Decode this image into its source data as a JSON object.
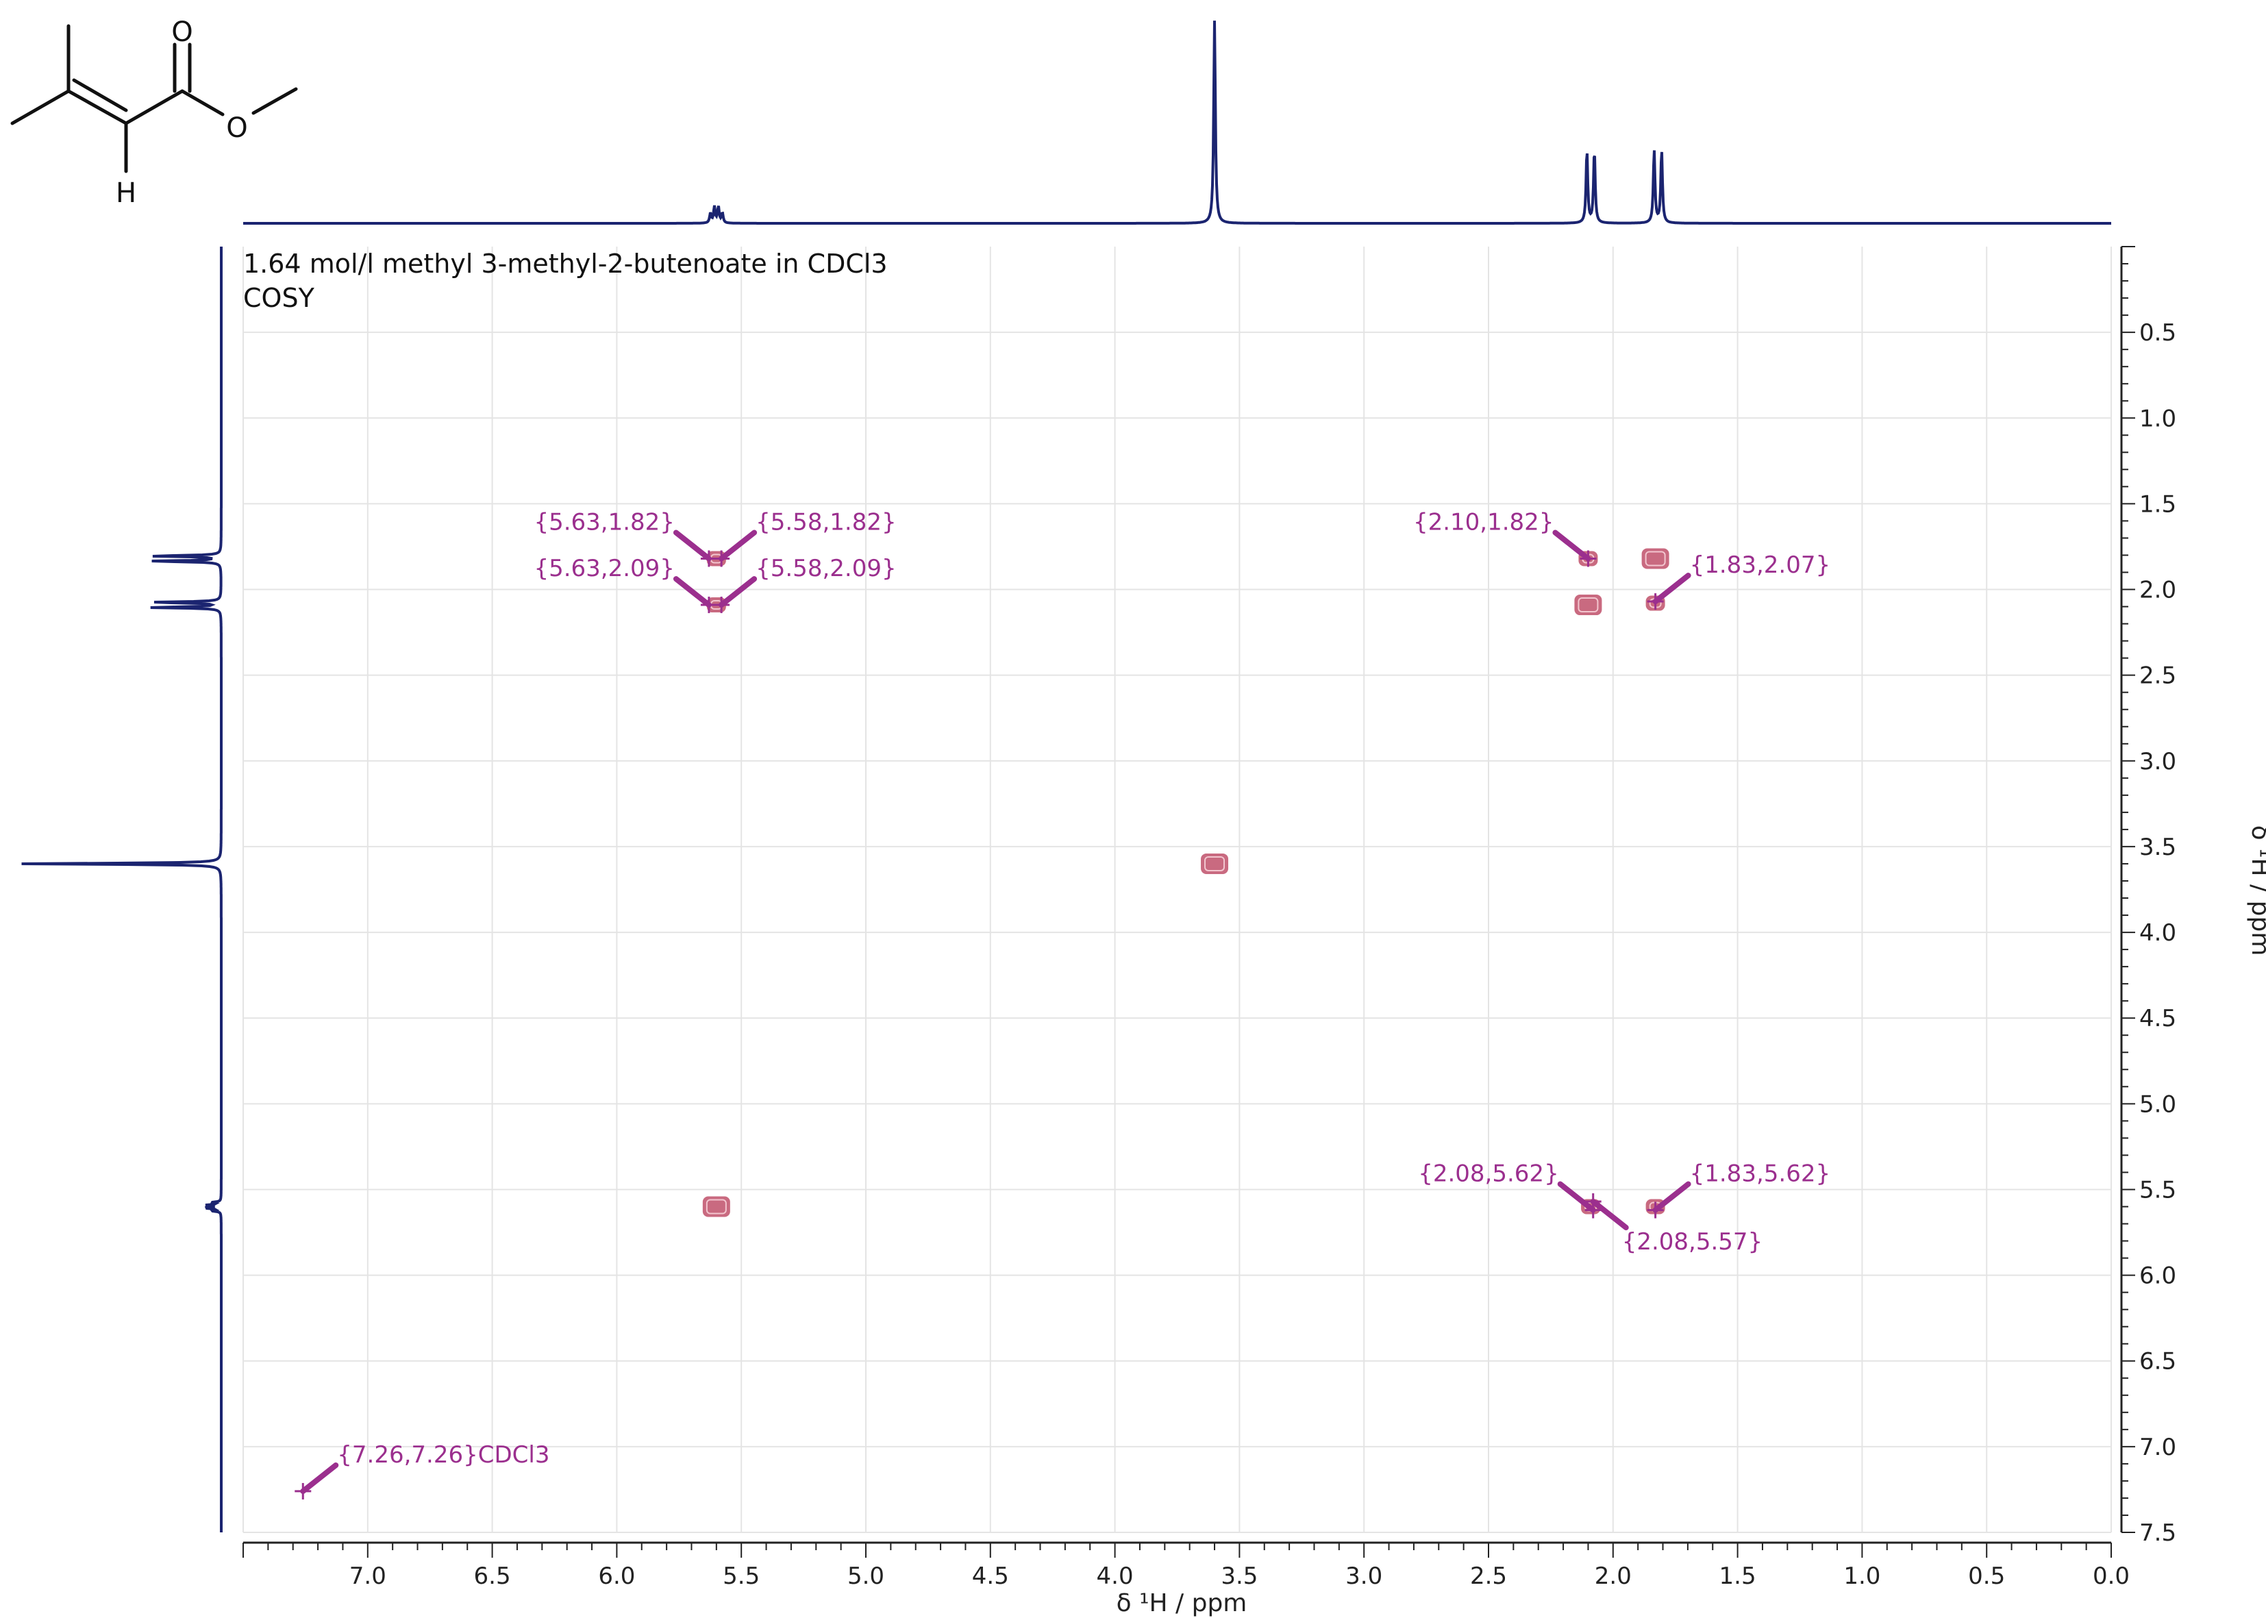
{
  "chart_data": {
    "type": "scatter",
    "title": "1.64 mol/l methyl 3-methyl-2-butenoate in CDCl3",
    "subtitle": "COSY",
    "xlabel": "δ ¹H / ppm",
    "ylabel": "δ ¹H / ppm",
    "xlim": [
      7.5,
      0.0
    ],
    "ylim": [
      0.0,
      7.5
    ],
    "x_ticks": [
      "7.0",
      "6.5",
      "6.0",
      "5.5",
      "5.0",
      "4.5",
      "4.0",
      "3.5",
      "3.0",
      "2.5",
      "2.0",
      "1.5",
      "1.0",
      "0.5",
      "0.0"
    ],
    "y_ticks": [
      "0.5",
      "1.0",
      "1.5",
      "2.0",
      "2.5",
      "3.0",
      "3.5",
      "4.0",
      "4.5",
      "5.0",
      "5.5",
      "6.0",
      "6.5",
      "7.0",
      "7.5"
    ],
    "grid": true,
    "projection_1d": {
      "peaks": [
        {
          "ppm": 5.6,
          "type": "multiplet",
          "height": 0.08
        },
        {
          "ppm": 3.6,
          "type": "singlet",
          "height": 1.0
        },
        {
          "ppm": 2.09,
          "type": "doublet",
          "height": 0.36
        },
        {
          "ppm": 1.82,
          "type": "doublet",
          "height": 0.36
        }
      ]
    },
    "cross_peaks": [
      {
        "x": 1.83,
        "y": 1.82,
        "kind": "diagonal"
      },
      {
        "x": 2.1,
        "y": 2.09,
        "kind": "diagonal"
      },
      {
        "x": 3.6,
        "y": 3.6,
        "kind": "diagonal"
      },
      {
        "x": 5.6,
        "y": 5.6,
        "kind": "diagonal"
      },
      {
        "x": 5.6,
        "y": 1.82,
        "kind": "off-diagonal"
      },
      {
        "x": 5.6,
        "y": 2.09,
        "kind": "off-diagonal"
      },
      {
        "x": 2.1,
        "y": 1.82,
        "kind": "off-diagonal"
      },
      {
        "x": 1.83,
        "y": 2.08,
        "kind": "off-diagonal"
      },
      {
        "x": 2.09,
        "y": 5.6,
        "kind": "off-diagonal"
      },
      {
        "x": 1.83,
        "y": 5.6,
        "kind": "off-diagonal"
      }
    ],
    "annotations": [
      {
        "text": "{5.63,1.82}",
        "x": 5.63,
        "y": 1.82,
        "pos": "upper-left"
      },
      {
        "text": "{5.58,1.82}",
        "x": 5.58,
        "y": 1.82,
        "pos": "upper-right"
      },
      {
        "text": "{5.63,2.09}",
        "x": 5.63,
        "y": 2.09,
        "pos": "upper-left"
      },
      {
        "text": "{5.58,2.09}",
        "x": 5.58,
        "y": 2.09,
        "pos": "upper-right"
      },
      {
        "text": "{2.10,1.82}",
        "x": 2.1,
        "y": 1.82,
        "pos": "upper-left"
      },
      {
        "text": "{1.83,2.07}",
        "x": 1.83,
        "y": 2.07,
        "pos": "upper-right"
      },
      {
        "text": "{2.08,5.62}",
        "x": 2.08,
        "y": 5.62,
        "pos": "upper-left"
      },
      {
        "text": "{1.83,5.62}",
        "x": 1.83,
        "y": 5.62,
        "pos": "upper-right"
      },
      {
        "text": "{2.08,5.57}",
        "x": 2.08,
        "y": 5.57,
        "pos": "lower-right"
      },
      {
        "text": "{7.26,7.26}CDCl3",
        "x": 7.26,
        "y": 7.26,
        "pos": "upper-right"
      }
    ],
    "structure_atom_labels": [
      "O",
      "O",
      "H"
    ],
    "colors": {
      "spectrum_1d": "#1b2470",
      "contour": "#c0506a",
      "annotation": "#9b2f8e",
      "grid": "#e4e4e4"
    }
  }
}
